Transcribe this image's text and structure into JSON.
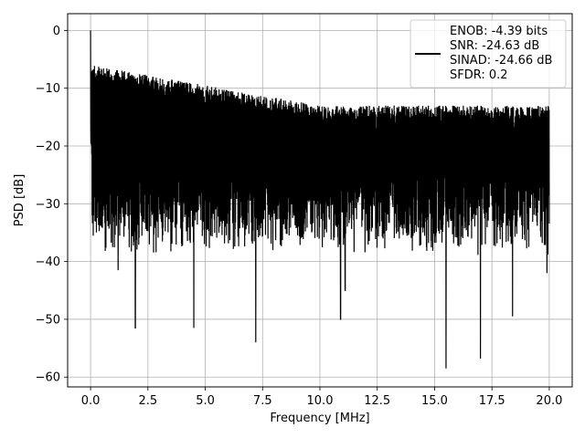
{
  "chart_data": {
    "type": "line",
    "title": "",
    "xlabel": "Frequency [MHz]",
    "ylabel": "PSD [dB]",
    "xlim": [
      -1.0,
      21.0
    ],
    "ylim": [
      -61.7,
      2.9
    ],
    "xticks": [
      0.0,
      2.5,
      5.0,
      7.5,
      10.0,
      12.5,
      15.0,
      17.5,
      20.0
    ],
    "xtick_labels": [
      "0.0",
      "2.5",
      "5.0",
      "7.5",
      "10.0",
      "12.5",
      "15.0",
      "17.5",
      "20.0"
    ],
    "yticks": [
      0,
      -10,
      -20,
      -30,
      -40,
      -50,
      -60
    ],
    "ytick_labels": [
      "0",
      "−10",
      "−20",
      "−30",
      "−40",
      "−50",
      "−60"
    ],
    "grid": true,
    "legend_placement": "upper-right",
    "legend_lines": [
      "ENOB: -4.39 bits",
      "SNR: -24.63 dB",
      "SINAD: -24.66 dB",
      "SFDR: 0.2"
    ],
    "series": [
      {
        "color": "#000000",
        "x_range": [
          0.0,
          20.0
        ],
        "noise_top_range": [
          -6.0,
          -13.0
        ],
        "typical_floor": [
          -22.0,
          -33.0
        ],
        "peak": {
          "x": 0.0,
          "y": 0.0
        },
        "notable_dips": [
          {
            "x": 1.2,
            "y": -41.5
          },
          {
            "x": 1.95,
            "y": -51.5
          },
          {
            "x": 4.5,
            "y": -51.5
          },
          {
            "x": 7.2,
            "y": -54.0
          },
          {
            "x": 10.9,
            "y": -50.0
          },
          {
            "x": 11.1,
            "y": -45.0
          },
          {
            "x": 15.5,
            "y": -58.5
          },
          {
            "x": 17.0,
            "y": -56.8
          },
          {
            "x": 18.4,
            "y": -49.5
          },
          {
            "x": 19.9,
            "y": -42.0
          }
        ]
      }
    ]
  }
}
